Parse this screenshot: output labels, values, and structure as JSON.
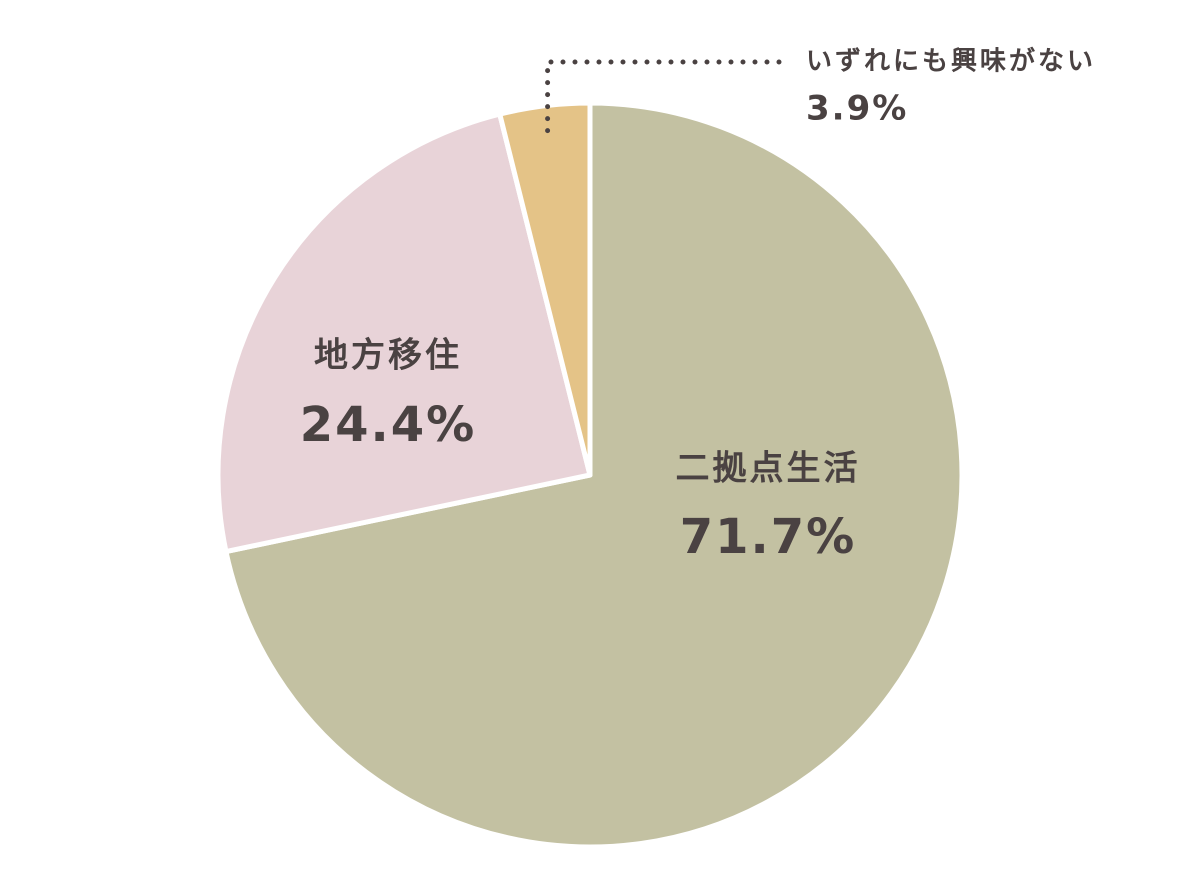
{
  "chart_data": {
    "type": "pie",
    "categories": [
      "二拠点生活",
      "地方移住",
      "いずれにも興味がない"
    ],
    "values": [
      71.7,
      24.4,
      3.9
    ],
    "value_labels": [
      "71.7%",
      "24.4%",
      "3.9%"
    ],
    "colors": [
      "#c3c1a2",
      "#e8d3d8",
      "#e4c387"
    ]
  }
}
